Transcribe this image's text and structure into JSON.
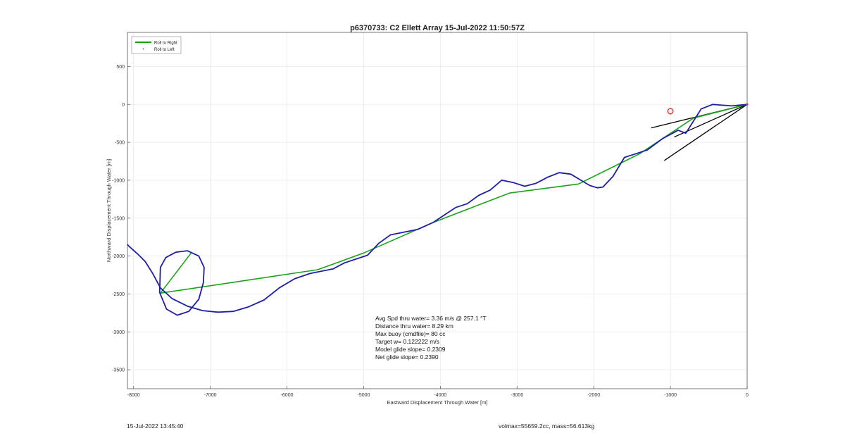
{
  "chart_data": {
    "type": "line",
    "title": "p6370733: C2 Ellett Array 15-Jul-2022 11:50:57Z",
    "xlabel": "Eastward Displacement Through Water [m]",
    "ylabel": "Northward Displacement Through Water [m]",
    "xlim": [
      -8080,
      0
    ],
    "ylim": [
      -3750,
      950
    ],
    "xticks": [
      -8000,
      -7000,
      -6000,
      -5000,
      -4000,
      -3000,
      -2000,
      -1000,
      0
    ],
    "yticks": [
      500,
      0,
      -500,
      -1000,
      -1500,
      -2000,
      -2500,
      -3000,
      -3500
    ],
    "grid": true,
    "legend": {
      "position": "top-left",
      "entries": [
        {
          "label": "Roll to Right",
          "color": "#1aa31a",
          "style": "line"
        },
        {
          "label": "Roll to Left",
          "color": "#555555",
          "style": "dot"
        }
      ]
    },
    "series": [
      {
        "name": "Roll to Right",
        "color": "#1aa31a",
        "x": [
          0,
          -700,
          -1400,
          -2200,
          -3100,
          -4100,
          -5000,
          -5600,
          -7650,
          -7250
        ],
        "y": [
          0,
          -180,
          -650,
          -1050,
          -1170,
          -1560,
          -1960,
          -2180,
          -2490,
          -1960
        ]
      },
      {
        "color": "#1e1ea8",
        "x": [
          0,
          -200,
          -450,
          -600,
          -700,
          -800,
          -900,
          -1100,
          -1300,
          -1450,
          -1600,
          -1750,
          -1880,
          -1950,
          -2050,
          -2150,
          -2300,
          -2450,
          -2600,
          -2750,
          -2900,
          -3050,
          -3200,
          -3350,
          -3500,
          -3650,
          -3800,
          -3950,
          -4100,
          -4300,
          -4500,
          -4650,
          -4800,
          -4950,
          -5100,
          -5250,
          -5400,
          -5550,
          -5700,
          -5900,
          -6100,
          -6300,
          -6500,
          -6700,
          -6900,
          -7100,
          -7300,
          -7500,
          -7650,
          -7750,
          -7850,
          -7950,
          -8050,
          -8080
        ],
        "y": [
          0,
          -20,
          0,
          -60,
          -220,
          -380,
          -340,
          -450,
          -600,
          -650,
          -700,
          -950,
          -1090,
          -1100,
          -1070,
          -1010,
          -920,
          -900,
          -960,
          -1040,
          -1080,
          -1030,
          -1000,
          -1130,
          -1200,
          -1310,
          -1360,
          -1460,
          -1560,
          -1650,
          -1690,
          -1720,
          -1830,
          -1990,
          -2040,
          -2090,
          -2170,
          -2200,
          -2230,
          -2300,
          -2420,
          -2580,
          -2670,
          -2730,
          -2740,
          -2720,
          -2660,
          -2560,
          -2420,
          -2230,
          -2070,
          -1970,
          -1880,
          -1850
        ]
      },
      {
        "color": "#1e1ea8",
        "loop": true,
        "x": [
          -7650,
          -7580,
          -7450,
          -7300,
          -7150,
          -7080,
          -7090,
          -7150,
          -7280,
          -7430,
          -7570,
          -7660,
          -7650
        ],
        "y": [
          -2150,
          -2020,
          -1950,
          -1930,
          -2000,
          -2150,
          -2350,
          -2570,
          -2730,
          -2780,
          -2700,
          -2480,
          -2150
        ]
      }
    ],
    "annotations": [
      {
        "text": "Avg Spd thru water=  3.36 m/s @ 257.1 °T"
      },
      {
        "text": "Distance thru water=  8.29 km"
      },
      {
        "text": "Max buoy (cmdfile)= 80 cc"
      },
      {
        "text": "Target w= 0.122222 m/s"
      },
      {
        "text": "Model glide slope= 0.2309"
      },
      {
        "text": "Net glide slope= 0.2390"
      }
    ],
    "marker": {
      "x": -1000,
      "y": -90,
      "color": "#e03030",
      "shape": "circle"
    }
  },
  "footer": {
    "left": "15-Jul-2022 13:45:40",
    "right": "volmax=55659.2cc, mass=56.613kg"
  },
  "colors": {
    "axis": "#555555",
    "grid": "#e6e6e6",
    "right_roll": "#1aa31a",
    "track": "#1e1ea8",
    "marker": "#e03030"
  }
}
